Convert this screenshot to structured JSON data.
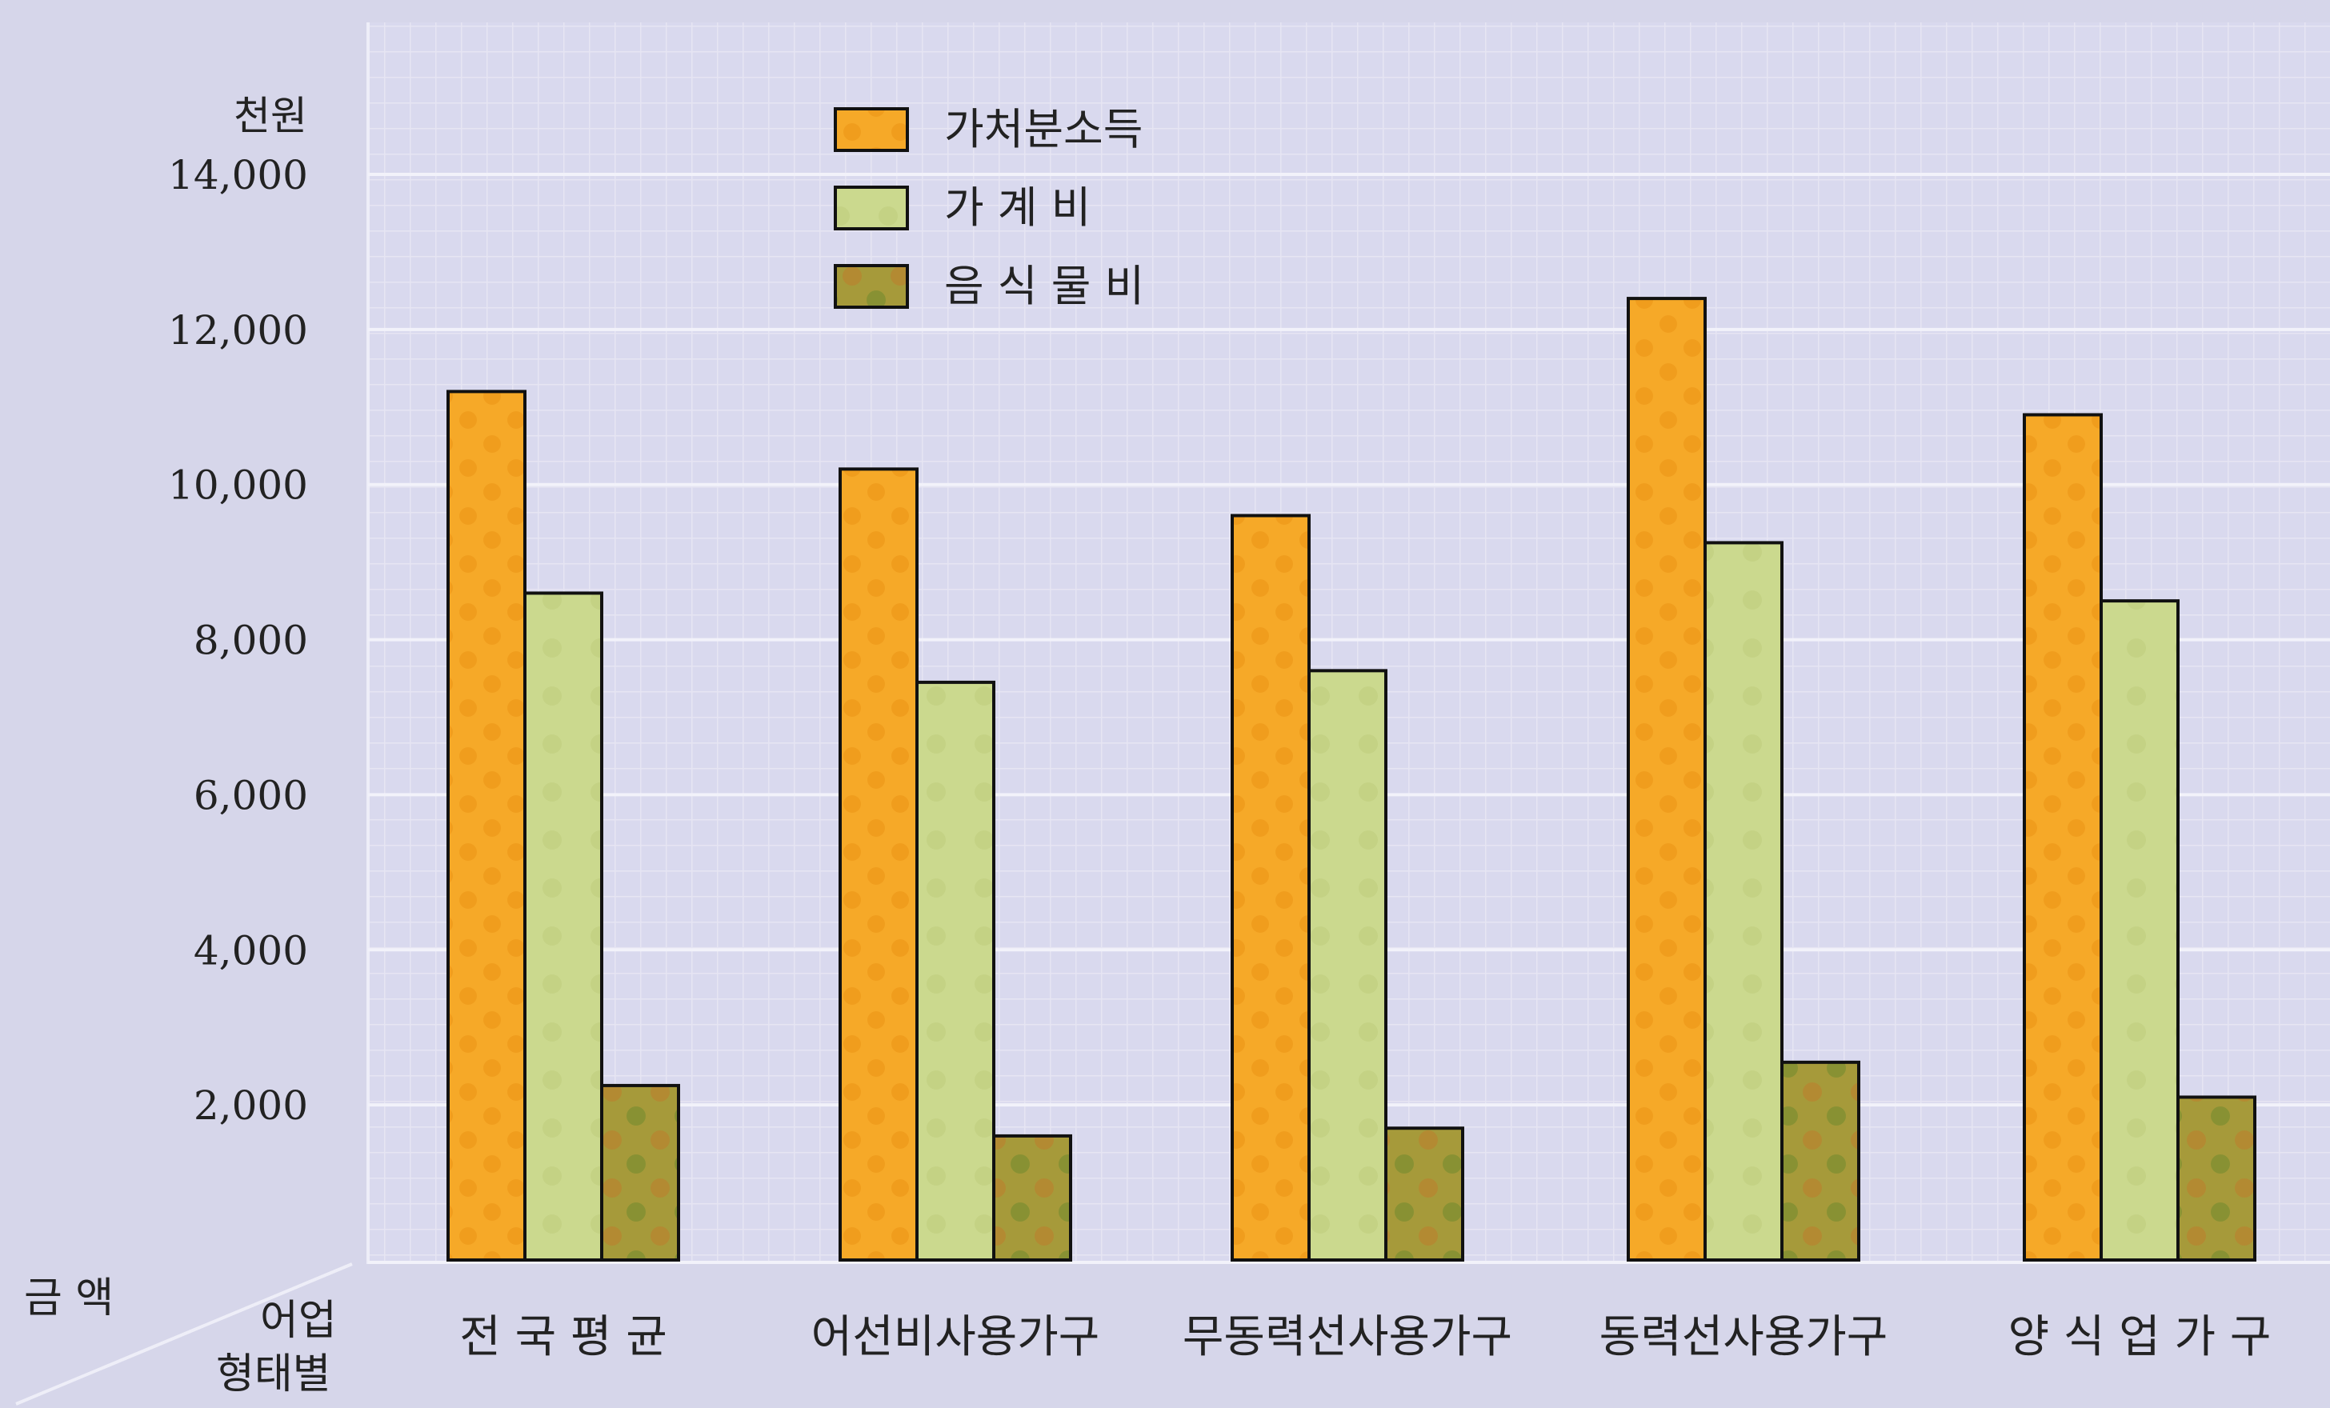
{
  "chart_data": {
    "type": "bar",
    "unit_label": "천원",
    "y_corner_label": "금 액",
    "x_corner_label_line1": "어업",
    "x_corner_label_line2": "형태별",
    "categories": [
      "전 국 평 균",
      "어선비사용가구",
      "무동력선사용가구",
      "동력선사용가구",
      "양 식 업 가 구"
    ],
    "series": [
      {
        "name": "가처분소득",
        "color": "#f5a623",
        "values": [
          11200,
          10200,
          9600,
          12400,
          10900
        ]
      },
      {
        "name": "가 계 비",
        "color": "#c9d88c",
        "values": [
          8600,
          7450,
          7600,
          9250,
          8500
        ]
      },
      {
        "name": "음 식 물 비",
        "color": "#9c9436",
        "values": [
          2250,
          1600,
          1700,
          2550,
          2100
        ]
      }
    ],
    "ylim": [
      0,
      14000
    ],
    "yticks": [
      "2,000",
      "4,000",
      "6,000",
      "8,000",
      "10,000",
      "12,000",
      "14,000"
    ],
    "ytick_values": [
      2000,
      4000,
      6000,
      8000,
      10000,
      12000,
      14000
    ],
    "grid": true,
    "legend_position": "top-center"
  }
}
